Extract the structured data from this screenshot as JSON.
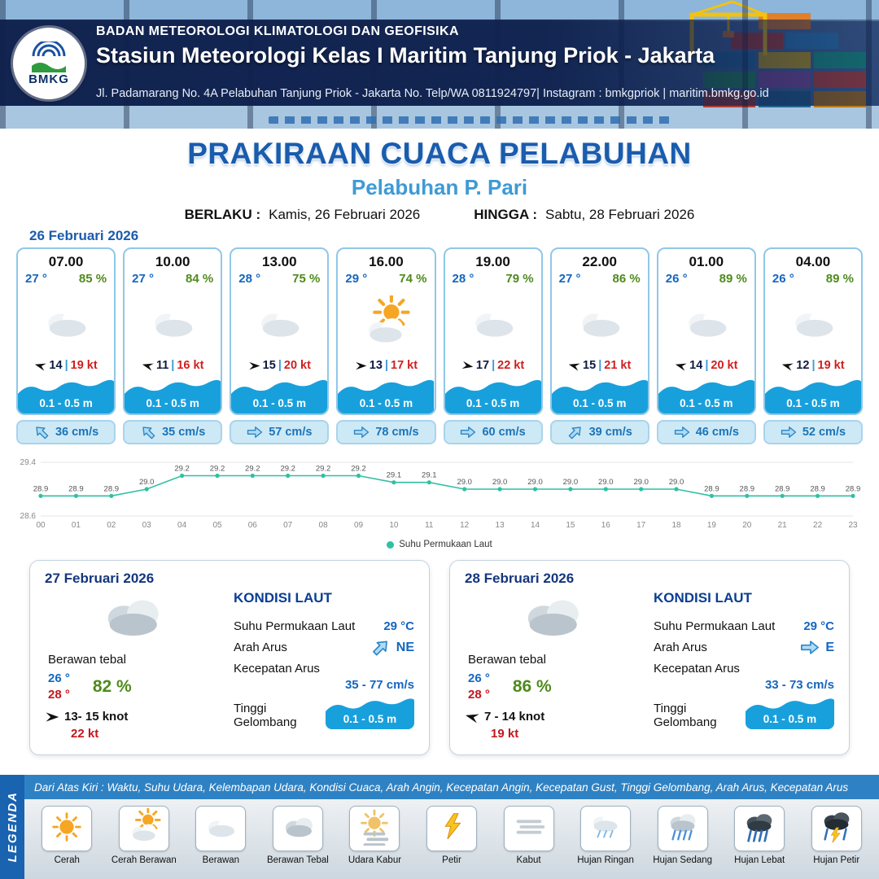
{
  "header": {
    "logo_text": "BMKG",
    "org": "BADAN METEOROLOGI KLIMATOLOGI DAN GEOFISIKA",
    "station": "Stasiun Meteorologi Kelas I Maritim Tanjung Priok - Jakarta",
    "address": "Jl. Padamarang No. 4A Pelabuhan Tanjung Priok - Jakarta No. Telp/WA 0811924797| Instagram : bmkgpriok | maritim.bmkg.go.id"
  },
  "title": {
    "main": "PRAKIRAAN CUACA PELABUHAN",
    "port": "Pelabuhan P. Pari",
    "valid_label": "BERLAKU :",
    "valid_value": "Kamis, 26 Februari 2026",
    "until_label": "HINGGA :",
    "until_value": "Sabtu, 28 Februari 2026"
  },
  "forecast_date": "26 Februari 2026",
  "wind_sep": "|",
  "forecast_cards": [
    {
      "time": "07.00",
      "temp": "27 °",
      "humidity": "85 %",
      "icon": "cloud",
      "wind_rot": 195,
      "wind": "14",
      "gust": "19 kt",
      "wave": "0.1 - 0.5 m",
      "current_rot": 225,
      "current": "36 cm/s"
    },
    {
      "time": "10.00",
      "temp": "27 °",
      "humidity": "84 %",
      "icon": "cloud",
      "wind_rot": 195,
      "wind": "11",
      "gust": "16 kt",
      "wave": "0.1 - 0.5 m",
      "current_rot": 225,
      "current": "35 cm/s"
    },
    {
      "time": "13.00",
      "temp": "28 °",
      "humidity": "75 %",
      "icon": "cloud",
      "wind_rot": 0,
      "wind": "15",
      "gust": "20 kt",
      "wave": "0.1 - 0.5 m",
      "current_rot": 0,
      "current": "57 cm/s"
    },
    {
      "time": "16.00",
      "temp": "29 °",
      "humidity": "74 %",
      "icon": "sun-cloud",
      "wind_rot": 0,
      "wind": "13",
      "gust": "17 kt",
      "wave": "0.1 - 0.5 m",
      "current_rot": 0,
      "current": "78 cm/s"
    },
    {
      "time": "19.00",
      "temp": "28 °",
      "humidity": "79 %",
      "icon": "cloud",
      "wind_rot": 10,
      "wind": "17",
      "gust": "22 kt",
      "wave": "0.1 - 0.5 m",
      "current_rot": 0,
      "current": "60 cm/s"
    },
    {
      "time": "22.00",
      "temp": "27 °",
      "humidity": "86 %",
      "icon": "cloud",
      "wind_rot": 195,
      "wind": "15",
      "gust": "21 kt",
      "wave": "0.1 - 0.5 m",
      "current_rot": 315,
      "current": "39 cm/s"
    },
    {
      "time": "01.00",
      "temp": "26 °",
      "humidity": "89 %",
      "icon": "cloud",
      "wind_rot": 195,
      "wind": "14",
      "gust": "20 kt",
      "wave": "0.1 - 0.5 m",
      "current_rot": 0,
      "current": "46 cm/s"
    },
    {
      "time": "04.00",
      "temp": "26 °",
      "humidity": "89 %",
      "icon": "cloud",
      "wind_rot": 195,
      "wind": "12",
      "gust": "19 kt",
      "wave": "0.1 - 0.5 m",
      "current_rot": 0,
      "current": "52 cm/s"
    }
  ],
  "chart_data": {
    "type": "line",
    "x": [
      "00",
      "01",
      "02",
      "03",
      "04",
      "05",
      "06",
      "07",
      "08",
      "09",
      "10",
      "11",
      "12",
      "13",
      "14",
      "15",
      "16",
      "17",
      "18",
      "19",
      "20",
      "21",
      "22",
      "23"
    ],
    "series": [
      {
        "name": "Suhu Permukaan Laut",
        "values": [
          28.9,
          28.9,
          28.9,
          29.0,
          29.2,
          29.2,
          29.2,
          29.2,
          29.2,
          29.2,
          29.1,
          29.1,
          29.0,
          29.0,
          29.0,
          29.0,
          29.0,
          29.0,
          29.0,
          28.9,
          28.9,
          28.9,
          28.9,
          28.9
        ]
      }
    ],
    "ylim": [
      28.6,
      29.4
    ],
    "yticks": [
      28.6,
      29.4
    ],
    "grid": "horizontal",
    "legend_position": "bottom",
    "line_color": "#2fc0a4",
    "title": "",
    "xlabel": "",
    "ylabel": ""
  },
  "day_cards": [
    {
      "date": "27 Februari 2026",
      "icon": "cloud-thick",
      "condition": "Berawan tebal",
      "temp_min": "26 °",
      "temp_max": "28 °",
      "humidity": "82 %",
      "wind_rot": 0,
      "wind": "13- 15 knot",
      "gust": "22 kt",
      "sea": {
        "title": "KONDISI LAUT",
        "sst_label": "Suhu Permukaan Laut",
        "sst": "29 °C",
        "dir_label": "Arah Arus",
        "dir": "NE",
        "dir_rot": 315,
        "speed_label": "Kecepatan Arus",
        "speed": "35 - 77 cm/s",
        "wave_label": "Tinggi Gelombang",
        "wave": "0.1 - 0.5 m"
      }
    },
    {
      "date": "28 Februari 2026",
      "icon": "cloud-thick",
      "condition": "Berawan tebal",
      "temp_min": "26 °",
      "temp_max": "28 °",
      "humidity": "86 %",
      "wind_rot": 195,
      "wind": "7 - 14 knot",
      "gust": "19 kt",
      "sea": {
        "title": "KONDISI LAUT",
        "sst_label": "Suhu Permukaan Laut",
        "sst": "29 °C",
        "dir_label": "Arah Arus",
        "dir": "E",
        "dir_rot": 0,
        "speed_label": "Kecepatan Arus",
        "speed": "33 - 73 cm/s",
        "wave_label": "Tinggi Gelombang",
        "wave": "0.1 - 0.5 m"
      }
    }
  ],
  "legend": {
    "band_title": "LEGENDA",
    "description": "Dari Atas Kiri : Waktu, Suhu Udara, Kelembapan Udara, Kondisi Cuaca, Arah Angin, Kecepatan Angin, Kecepatan Gust, Tinggi Gelombang, Arah Arus, Kecepatan Arus",
    "items": [
      {
        "label": "Cerah",
        "icon": "sun"
      },
      {
        "label": "Cerah Berawan",
        "icon": "sun-cloud"
      },
      {
        "label": "Berawan",
        "icon": "cloud"
      },
      {
        "label": "Berawan Tebal",
        "icon": "cloud-thick"
      },
      {
        "label": "Udara Kabur",
        "icon": "haze"
      },
      {
        "label": "Petir",
        "icon": "lightning"
      },
      {
        "label": "Kabut",
        "icon": "fog"
      },
      {
        "label": "Hujan Ringan",
        "icon": "rain-light"
      },
      {
        "label": "Hujan Sedang",
        "icon": "rain-medium"
      },
      {
        "label": "Hujan Lebat",
        "icon": "rain-heavy"
      },
      {
        "label": "Hujan Petir",
        "icon": "thunderstorm"
      }
    ]
  },
  "colors": {
    "navy": "#14295e",
    "accent_blue": "#1a5cad",
    "light_blue": "#3e9ad6",
    "wave_blue": "#18a0dc",
    "temp_blue": "#1566c0",
    "humidity_green": "#4f8a1d",
    "alert_red": "#d01f1f",
    "chart_teal": "#2fc0a4"
  }
}
